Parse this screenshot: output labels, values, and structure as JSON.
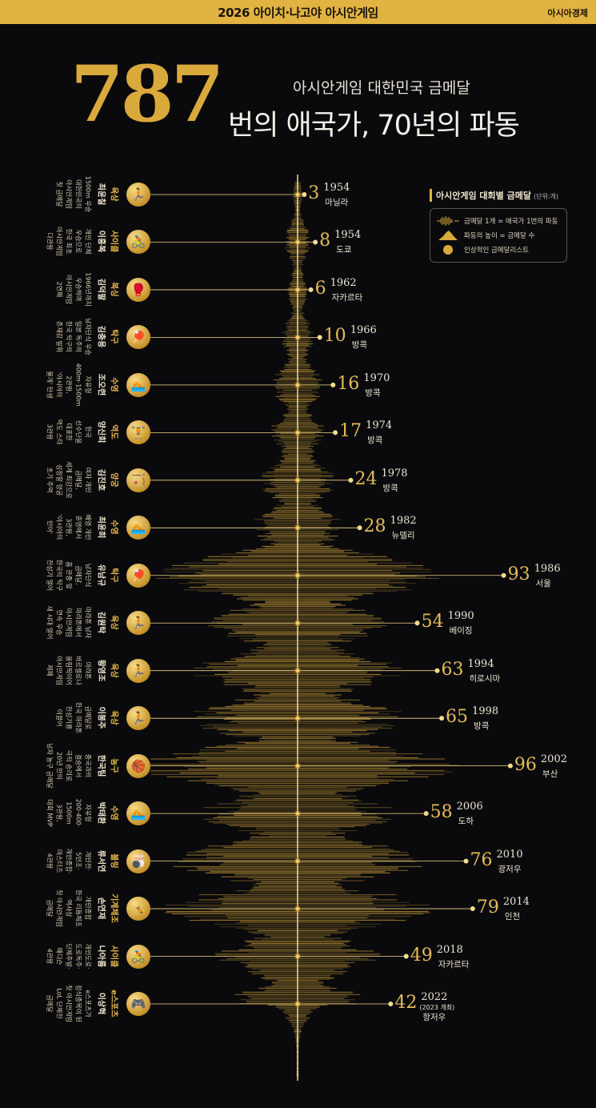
{
  "header": {
    "event": "2026 아이치·나고야 아시안게임",
    "publisher": "아시아경제"
  },
  "hero": {
    "total": "787",
    "subtitle": "아시안게임 대한민국 금메달",
    "headline": "번의 애국가, 70년의 파동"
  },
  "legend": {
    "title": "아시안게임 대회별 금메달",
    "unit": "(단위:개)",
    "items": [
      {
        "icon": "waveform-icon",
        "text": "금메달 1개 = 애국가 1번의 파동"
      },
      {
        "icon": "peak-icon",
        "text": "파동의 높이 = 금메달 수"
      },
      {
        "icon": "medal-icon",
        "text": "인상적인 금메달리스트"
      }
    ]
  },
  "colors": {
    "accent": "#e1b343",
    "background": "#0a0a0c",
    "wave": "#d9a93c"
  },
  "chart_data": {
    "type": "bar",
    "orientation": "horizontal",
    "series": [
      {
        "name": "금메달",
        "values": [
          3,
          8,
          6,
          10,
          16,
          17,
          24,
          28,
          93,
          54,
          63,
          65,
          96,
          58,
          76,
          79,
          49,
          42
        ]
      }
    ],
    "categories": [
      "1954",
      "1954",
      "1962",
      "1966",
      "1970",
      "1974",
      "1978",
      "1982",
      "1986",
      "1990",
      "1994",
      "1998",
      "2002",
      "2006",
      "2010",
      "2014",
      "2018",
      "2022"
    ],
    "games": [
      {
        "year": "1954",
        "city": "마닐라",
        "count": 3
      },
      {
        "year": "1954",
        "city": "도쿄",
        "count": 8
      },
      {
        "year": "1962",
        "city": "자카르타",
        "count": 6
      },
      {
        "year": "1966",
        "city": "방콕",
        "count": 10
      },
      {
        "year": "1970",
        "city": "방콕",
        "count": 16
      },
      {
        "year": "1974",
        "city": "방콕",
        "count": 17
      },
      {
        "year": "1978",
        "city": "방콕",
        "count": 24
      },
      {
        "year": "1982",
        "city": "뉴델리",
        "count": 28
      },
      {
        "year": "1986",
        "city": "서울",
        "count": 93
      },
      {
        "year": "1990",
        "city": "베이징",
        "count": 54
      },
      {
        "year": "1994",
        "city": "히로시마",
        "count": 63
      },
      {
        "year": "1998",
        "city": "방콕",
        "count": 65
      },
      {
        "year": "2002",
        "city": "부산",
        "count": 96
      },
      {
        "year": "2006",
        "city": "도하",
        "count": 58
      },
      {
        "year": "2010",
        "city": "광저우",
        "count": 76
      },
      {
        "year": "2014",
        "city": "인천",
        "count": 79
      },
      {
        "year": "2018",
        "city": "자카르타",
        "count": 49
      },
      {
        "year": "2022",
        "city": "항저우",
        "note": "(2023 개최)",
        "count": 42
      }
    ],
    "athletes": [
      {
        "sport": "육상",
        "name": "최윤칠",
        "desc": [
          "1500m 우승",
          "대한민국의",
          "아시안게임",
          "첫 금메달"
        ],
        "icon": "runner-icon"
      },
      {
        "sport": "사이클",
        "name": "이흥복",
        "desc": [
          "개인 단체",
          "우승으로",
          "한국 최초",
          "아시안게임",
          "다관왕"
        ],
        "icon": "cyclist-icon"
      },
      {
        "sport": "복싱",
        "name": "김덕팔",
        "desc": [
          "1966년까지",
          "우승하며",
          "아시안게임",
          "2연패"
        ],
        "icon": "boxer-icon"
      },
      {
        "sport": "탁구",
        "name": "김충용",
        "desc": [
          "남자단식 우승",
          "일본 독주의",
          "한국 탁구의",
          "존재감 발휘"
        ],
        "icon": "pingpong-icon"
      },
      {
        "sport": "수영",
        "name": "조오련",
        "desc": [
          "자유형",
          "400m·1500m",
          "2관왕,",
          "'아시아의",
          "물개' 탄생"
        ],
        "icon": "swimmer-icon"
      },
      {
        "sport": "역도",
        "name": "양신회",
        "desc": [
          "한국",
          "선수단을",
          "대표한",
          "역도 스타",
          "3관왕"
        ],
        "icon": "weightlift-icon"
      },
      {
        "sport": "양궁",
        "name": "김진호",
        "desc": [
          "여자 개인",
          "금메달,",
          "세계 최강으로",
          "성장할 양궁",
          "초기 주역"
        ],
        "icon": "archer-icon"
      },
      {
        "sport": "수영",
        "name": "최윤희",
        "desc": [
          "배영 개인",
          "혼영에서",
          "3관왕,",
          "'아시아의",
          "인어'"
        ],
        "icon": "swimmer-icon"
      },
      {
        "sport": "탁구",
        "name": "유남규",
        "desc": [
          "남자단식",
          "금메달,",
          "홈 관중 앞",
          "한국의 탁구",
          "전성기 열어"
        ],
        "icon": "pingpong-icon"
      },
      {
        "sport": "육상",
        "name": "김원탁",
        "desc": [
          "마라톤 남자",
          "마라톤에서",
          "아시안게임",
          "연속 우승",
          "새 시대 열어"
        ],
        "icon": "runner-icon"
      },
      {
        "sport": "육상",
        "name": "황영조",
        "desc": [
          "마라톤",
          "바르셀로나",
          "올림픽이어",
          "아시안게임",
          "제패"
        ],
        "icon": "runner-icon"
      },
      {
        "sport": "육상",
        "name": "이봉주",
        "desc": [
          "금메달로",
          "한국 마라톤",
          "전성기를",
          "이끌어"
        ],
        "icon": "runner-icon"
      },
      {
        "sport": "농구",
        "name": "한국팀",
        "desc": [
          "중국과의",
          "결승에서",
          "극적 승리로",
          "20년 만의",
          "남자 농구 금메달"
        ],
        "icon": "basketball-icon"
      },
      {
        "sport": "수영",
        "name": "박태환",
        "desc": [
          "자유형",
          "200·400·",
          "1500m",
          "3관왕,",
          "대회 MVP"
        ],
        "icon": "swimmer-icon"
      },
      {
        "sport": "볼링",
        "name": "류서연",
        "desc": [
          "개인전·",
          "5인조·",
          "개인종합·",
          "마스터즈",
          "4관왕"
        ],
        "icon": "bowler-icon"
      },
      {
        "sport": "기계체조",
        "name": "손연재",
        "desc": [
          "개인종합",
          "한국 리듬체조",
          "역사상",
          "첫 아시안게임",
          "금메달"
        ],
        "icon": "gymnast-icon"
      },
      {
        "sport": "사이클",
        "name": "나아름",
        "desc": [
          "개인도로·",
          "도로독주·",
          "단체추발·",
          "매디슨",
          "4관왕"
        ],
        "icon": "cyclist-icon"
      },
      {
        "sport": "e스포츠",
        "name": "이상혁",
        "desc": [
          "e스포츠가",
          "정식종목이 된",
          "첫 아시안게임",
          "LoL 단체전",
          "금메달"
        ],
        "icon": "esports-icon"
      }
    ]
  }
}
